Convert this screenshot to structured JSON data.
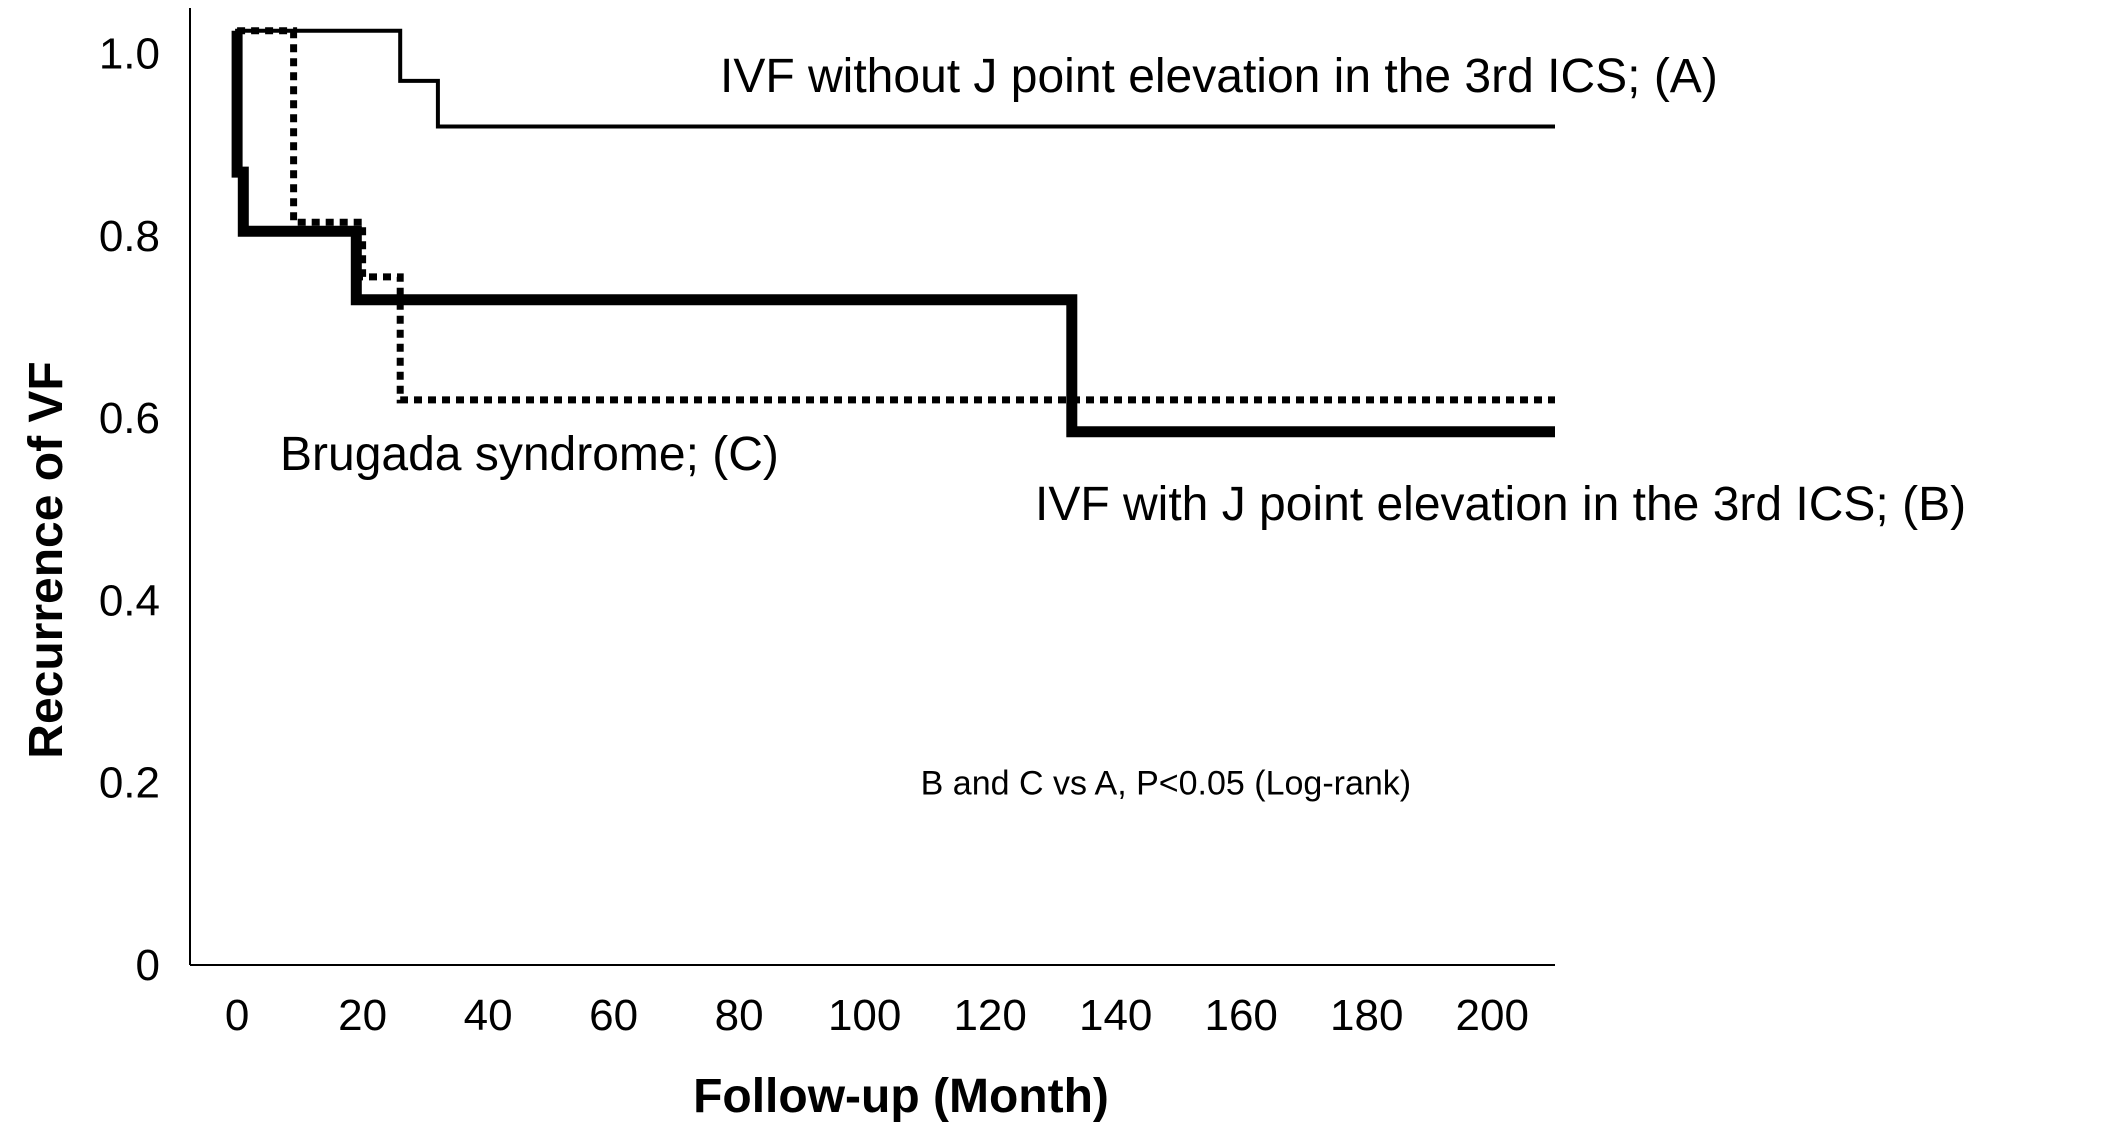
{
  "chart_data": {
    "type": "line",
    "step": true,
    "title": "",
    "xlabel": "Follow-up (Month)",
    "ylabel": "Recurrence of VF",
    "xlim": [
      -7.5,
      210
    ],
    "ylim": [
      0,
      1.05
    ],
    "x_ticks": [
      0,
      20,
      40,
      60,
      80,
      100,
      120,
      140,
      160,
      180,
      200
    ],
    "x_tick_labels": [
      "0",
      "20",
      "40",
      "60",
      "80",
      "100",
      "120",
      "140",
      "160",
      "180",
      "200"
    ],
    "y_ticks": [
      0,
      0.2,
      0.4,
      0.6,
      0.8,
      1.0
    ],
    "y_tick_labels": [
      "0",
      "0.2",
      "0.4",
      "0.6",
      "0.8",
      "1.0"
    ],
    "grid": false,
    "legend": "none",
    "series": [
      {
        "label": "IVF without J point elevation in the 3rd ICS; (A)",
        "style": "solid-thin",
        "color": "#000000",
        "points": [
          [
            0,
            0.88
          ],
          [
            0,
            1.025
          ],
          [
            26,
            1.025
          ],
          [
            26,
            0.97
          ],
          [
            32,
            0.97
          ],
          [
            32,
            0.92
          ],
          [
            210,
            0.92
          ]
        ]
      },
      {
        "label": "IVF with J point elevation in the 3rd ICS; (B)",
        "style": "solid-thick",
        "color": "#000000",
        "points": [
          [
            0,
            1.025
          ],
          [
            0,
            0.87
          ],
          [
            1,
            0.87
          ],
          [
            1,
            0.805
          ],
          [
            19,
            0.805
          ],
          [
            19,
            0.73
          ],
          [
            133,
            0.73
          ],
          [
            133,
            0.585
          ],
          [
            210,
            0.585
          ]
        ]
      },
      {
        "label": "Brugada syndrome; (C)",
        "style": "dotted",
        "color": "#000000",
        "points": [
          [
            0,
            1.025
          ],
          [
            9,
            1.025
          ],
          [
            9,
            0.815
          ],
          [
            20,
            0.815
          ],
          [
            20,
            0.755
          ],
          [
            26,
            0.755
          ],
          [
            26,
            0.62
          ],
          [
            210,
            0.62
          ]
        ]
      }
    ],
    "annotations": [
      {
        "text": "B and C vs A, P<0.05 (Log-rank)",
        "x": 148,
        "y": 0.2
      }
    ]
  }
}
